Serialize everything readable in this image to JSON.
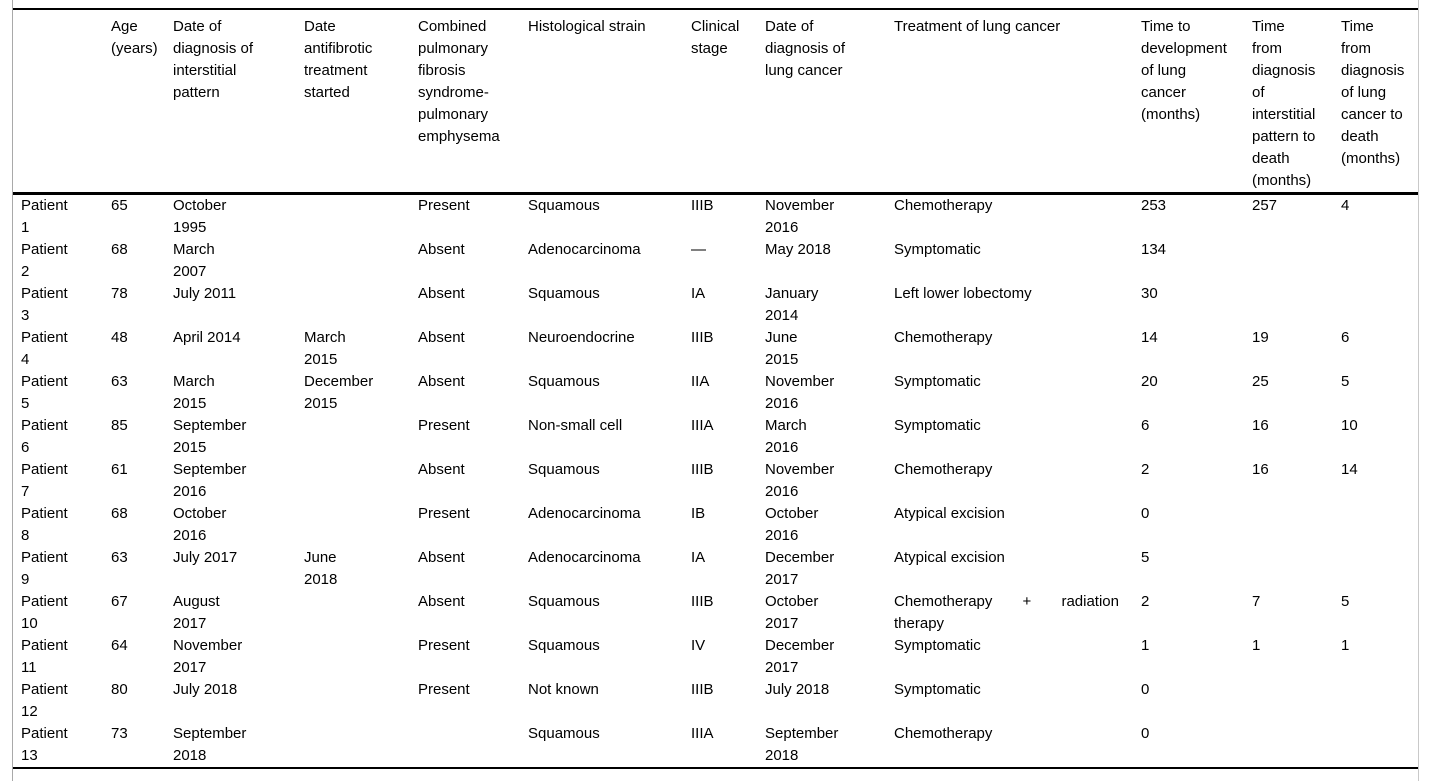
{
  "table": {
    "columns": [
      {
        "label": ""
      },
      {
        "label": "Age\n(years)"
      },
      {
        "label": "Date of\ndiagnosis of\ninterstitial\npattern"
      },
      {
        "label": "Date\nantifibrotic\ntreatment\nstarted"
      },
      {
        "label": "Combined\npulmonary\nfibrosis\nsyndrome-\npulmonary\nemphysema"
      },
      {
        "label": "Histological strain"
      },
      {
        "label": "Clinical\nstage"
      },
      {
        "label": "Date of\ndiagnosis of\nlung cancer"
      },
      {
        "label": "Treatment of lung cancer"
      },
      {
        "label": "Time to\ndevelopment\nof lung\ncancer\n(months)"
      },
      {
        "label": "Time\nfrom\ndiagnosis\nof\ninterstitial\npattern to\ndeath\n(months)"
      },
      {
        "label": "Time\nfrom\ndiagnosis\nof lung\ncancer to\ndeath\n(months)"
      }
    ],
    "rows": [
      {
        "cells": [
          "Patient\n1",
          "65",
          "October\n1995",
          "",
          "Present",
          "Squamous",
          "IIIB",
          "November\n2016",
          "Chemotherapy",
          "253",
          "257",
          "4"
        ]
      },
      {
        "cells": [
          "Patient\n2",
          "68",
          "March\n2007",
          "",
          "Absent",
          "Adenocarcinoma",
          "—",
          "May 2018",
          "Symptomatic",
          "134",
          "",
          ""
        ]
      },
      {
        "cells": [
          "Patient\n3",
          "78",
          "July 2011",
          "",
          "Absent",
          "Squamous",
          "IA",
          "January\n2014",
          "Left lower lobectomy",
          "30",
          "",
          ""
        ]
      },
      {
        "cells": [
          "Patient\n4",
          "48",
          "April 2014",
          "March\n2015",
          "Absent",
          "Neuroendocrine",
          "IIIB",
          "June\n2015",
          "Chemotherapy",
          "14",
          "19",
          "6"
        ]
      },
      {
        "cells": [
          "Patient\n5",
          "63",
          "March\n2015",
          "December\n2015",
          "Absent",
          "Squamous",
          "IIA",
          "November\n2016",
          "Symptomatic",
          "20",
          "25",
          "5"
        ]
      },
      {
        "cells": [
          "Patient\n6",
          "85",
          "September\n2015",
          "",
          "Present",
          "Non-small cell",
          "IIIA",
          "March\n2016",
          "Symptomatic",
          "6",
          "16",
          "10"
        ]
      },
      {
        "cells": [
          "Patient\n7",
          "61",
          "September\n2016",
          "",
          "Absent",
          "Squamous",
          "IIIB",
          "November\n2016",
          "Chemotherapy",
          "2",
          "16",
          "14"
        ]
      },
      {
        "cells": [
          "Patient\n8",
          "68",
          "October\n2016",
          "",
          "Present",
          "Adenocarcinoma",
          "IB",
          "October\n2016",
          "Atypical excision",
          "0",
          "",
          ""
        ]
      },
      {
        "cells": [
          "Patient\n9",
          "63",
          "July 2017",
          "June\n2018",
          "Absent",
          "Adenocarcinoma",
          "IA",
          "December\n2017",
          "Atypical excision",
          "5",
          "",
          ""
        ]
      },
      {
        "cells": [
          "Patient\n10",
          "67",
          "August\n2017",
          "",
          "Absent",
          "Squamous",
          "IIIB",
          "October\n2017",
          "Chemotherapy + radiation\ntherapy",
          "2",
          "7",
          "5"
        ]
      },
      {
        "cells": [
          "Patient\n11",
          "64",
          "November\n2017",
          "",
          "Present",
          "Squamous",
          "IV",
          "December\n2017",
          "Symptomatic",
          "1",
          "1",
          "1"
        ]
      },
      {
        "cells": [
          "Patient\n12",
          "80",
          "July 2018",
          "",
          "Present",
          "Not known",
          "IIIB",
          "July 2018",
          "Symptomatic",
          "0",
          "",
          ""
        ]
      },
      {
        "cells": [
          "Patient\n13",
          "73",
          "September\n2018",
          "",
          "",
          "Squamous",
          "IIIA",
          "September\n2018",
          "Chemotherapy",
          "0",
          "",
          ""
        ]
      }
    ]
  }
}
